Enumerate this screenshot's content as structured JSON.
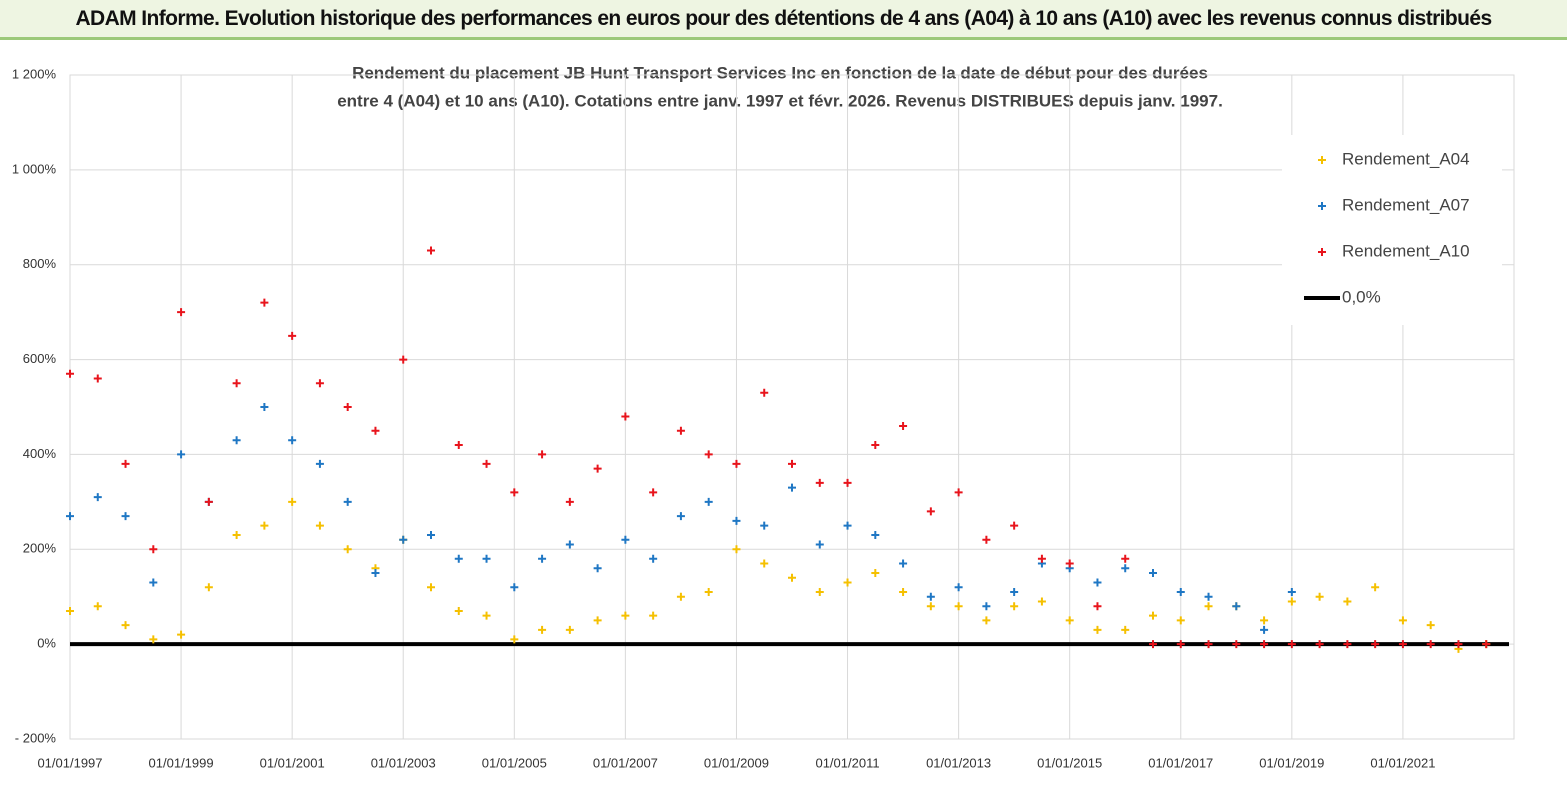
{
  "header": "ADAM Informe. Evolution historique des performances en euros pour des détentions de 4 ans (A04) à 10 ans (A10) avec les revenus connus distribués",
  "chart_data": {
    "type": "scatter",
    "title": "Rendement du placement JB Hunt Transport Services  Inc en fonction de la date de début pour des durées",
    "subtitle": "entre 4 (A04) et 10 ans (A10).  Cotations entre janv. 1997 et févr. 2026. Revenus DISTRIBUES depuis janv. 1997.",
    "x": [
      1997,
      1997.5,
      1998,
      1998.5,
      1999,
      1999.5,
      2000,
      2000.5,
      2001,
      2001.5,
      2002,
      2002.5,
      2003,
      2003.5,
      2004,
      2004.5,
      2005,
      2005.5,
      2006,
      2006.5,
      2007,
      2007.5,
      2008,
      2008.5,
      2009,
      2009.5,
      2010,
      2010.5,
      2011,
      2011.5,
      2012,
      2012.5,
      2013,
      2013.5,
      2014,
      2014.5,
      2015,
      2015.5,
      2016,
      2016.5,
      2017,
      2017.5,
      2018,
      2018.5,
      2019,
      2019.5,
      2020,
      2020.5,
      2021,
      2021.5,
      2022,
      2022.5
    ],
    "series": [
      {
        "name": "Rendement_A04",
        "color": "#f5c000",
        "values": [
          70,
          80,
          40,
          10,
          20,
          120,
          230,
          250,
          300,
          250,
          200,
          160,
          220,
          120,
          70,
          60,
          10,
          30,
          30,
          50,
          60,
          60,
          100,
          110,
          200,
          170,
          140,
          110,
          130,
          150,
          110,
          80,
          80,
          50,
          80,
          90,
          50,
          30,
          30,
          60,
          50,
          80,
          80,
          50,
          90,
          100,
          90,
          120,
          50,
          40,
          -10,
          0
        ]
      },
      {
        "name": "Rendement_A07",
        "color": "#1f77c4",
        "values": [
          270,
          310,
          270,
          130,
          400,
          300,
          430,
          500,
          430,
          380,
          300,
          150,
          220,
          230,
          180,
          180,
          120,
          180,
          210,
          160,
          220,
          180,
          270,
          300,
          260,
          250,
          330,
          210,
          250,
          230,
          170,
          100,
          120,
          80,
          110,
          170,
          160,
          130,
          160,
          150,
          110,
          100,
          80,
          30,
          110,
          null,
          null,
          null,
          null,
          null,
          null,
          null
        ]
      },
      {
        "name": "Rendement_A10",
        "color": "#e8141c",
        "values": [
          570,
          560,
          380,
          200,
          700,
          300,
          550,
          720,
          650,
          550,
          500,
          450,
          600,
          830,
          420,
          380,
          320,
          400,
          300,
          370,
          480,
          320,
          450,
          400,
          380,
          530,
          380,
          340,
          340,
          420,
          460,
          280,
          320,
          220,
          250,
          180,
          170,
          80,
          180,
          0,
          0,
          0,
          0,
          0,
          0,
          0,
          0,
          0,
          0,
          0,
          0,
          0
        ]
      }
    ],
    "reference_line": {
      "name": "0,0%",
      "value": 0,
      "color": "#000000"
    },
    "xlim": [
      1997,
      2023
    ],
    "xticks": [
      {
        "value": 1997,
        "label": "01/01/1997"
      },
      {
        "value": 1999,
        "label": "01/01/1999"
      },
      {
        "value": 2001,
        "label": "01/01/2001"
      },
      {
        "value": 2003,
        "label": "01/01/2003"
      },
      {
        "value": 2005,
        "label": "01/01/2005"
      },
      {
        "value": 2007,
        "label": "01/01/2007"
      },
      {
        "value": 2009,
        "label": "01/01/2009"
      },
      {
        "value": 2011,
        "label": "01/01/2011"
      },
      {
        "value": 2013,
        "label": "01/01/2013"
      },
      {
        "value": 2015,
        "label": "01/01/2015"
      },
      {
        "value": 2017,
        "label": "01/01/2017"
      },
      {
        "value": 2019,
        "label": "01/01/2019"
      },
      {
        "value": 2021,
        "label": "01/01/2021"
      }
    ],
    "ylim": [
      -200,
      1200
    ],
    "yticks": [
      {
        "value": -200,
        "label": "- 200%"
      },
      {
        "value": 0,
        "label": "0%"
      },
      {
        "value": 200,
        "label": "200%"
      },
      {
        "value": 400,
        "label": "400%"
      },
      {
        "value": 600,
        "label": "600%"
      },
      {
        "value": 800,
        "label": "800%"
      },
      {
        "value": 1000,
        "label": "1 000%"
      },
      {
        "value": 1200,
        "label": "1 200%"
      }
    ],
    "grid": true,
    "legend": "upper right"
  }
}
